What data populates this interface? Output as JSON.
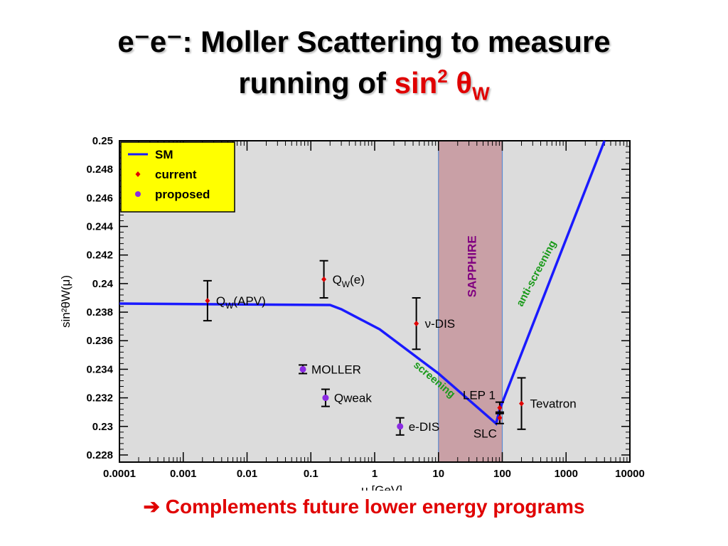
{
  "slide": {
    "title_line1": "e⁻e⁻:  Moller Scattering to measure",
    "title_line2_prefix": "running of ",
    "title_line2_sin": "sin",
    "title_line2_exp": "2",
    "title_line2_theta": " θ",
    "title_line2_sub": "W",
    "footer_arrow": "➔",
    "footer_text": " Complements future lower energy programs"
  },
  "colors": {
    "plot_background": "#dcdcdc",
    "sm_line": "#1a1aff",
    "current_point": "#e00000",
    "proposed_point": "#8a2be2",
    "legend_background": "#ffff00",
    "sapphire_band": "#c9a0a6",
    "annotation_green": "#1a9a1a",
    "sapphire_text": "#800080",
    "title_red": "#e00000"
  },
  "chart_data": {
    "type": "scatter",
    "xscale": "log",
    "xlim": [
      0.0001,
      10000
    ],
    "ylim": [
      0.2275,
      0.25
    ],
    "xlabel": "μ [GeV]",
    "ylabel": "sin²θW(μ)",
    "xtick_labels": [
      "0.0001",
      "0.001",
      "0.01",
      "0.1",
      "1",
      "10",
      "100",
      "1000",
      "10000"
    ],
    "xtick_values": [
      0.0001,
      0.001,
      0.01,
      0.1,
      1,
      10,
      100,
      1000,
      10000
    ],
    "ytick_labels": [
      "0.228",
      "0.23",
      "0.232",
      "0.234",
      "0.236",
      "0.238",
      "0.24",
      "0.242",
      "0.244",
      "0.246",
      "0.248",
      "0.25"
    ],
    "ytick_values": [
      0.228,
      0.23,
      0.232,
      0.234,
      0.236,
      0.238,
      0.24,
      0.242,
      0.244,
      0.246,
      0.248,
      0.25
    ],
    "grid": false,
    "legend": {
      "position": "top-left",
      "entries": [
        {
          "label": "SM",
          "marker": "line"
        },
        {
          "label": "current",
          "marker": "current"
        },
        {
          "label": "proposed",
          "marker": "proposed"
        }
      ]
    },
    "sm_curve": {
      "name": "SM",
      "x": [
        0.0001,
        0.2,
        0.3,
        1.2,
        10,
        80,
        91.2,
        4000
      ],
      "y": [
        0.2386,
        0.2385,
        0.2382,
        0.2368,
        0.2337,
        0.2302,
        0.2312,
        0.25
      ]
    },
    "points": [
      {
        "label": "QW(APV)",
        "label_main": "Q",
        "label_sub": "W",
        "label_rest": "(APV)",
        "kind": "current",
        "x": 0.0024,
        "y": 0.2388,
        "err": 0.0014,
        "label_side": "right"
      },
      {
        "label": "QW(e)",
        "label_main": "Q",
        "label_sub": "W",
        "label_rest": "(e)",
        "kind": "current",
        "x": 0.16,
        "y": 0.2403,
        "err": 0.0013,
        "label_side": "right"
      },
      {
        "label": "ν-DIS",
        "label_main": "ν-DIS",
        "label_sub": "",
        "label_rest": "",
        "kind": "current",
        "x": 4.5,
        "y": 0.2372,
        "err": 0.0018,
        "label_side": "right"
      },
      {
        "label": "MOLLER",
        "label_main": "MOLLER",
        "label_sub": "",
        "label_rest": "",
        "kind": "proposed",
        "x": 0.075,
        "y": 0.234,
        "err": 0.0003,
        "label_side": "right"
      },
      {
        "label": "Qweak",
        "label_main": "Qweak",
        "label_sub": "",
        "label_rest": "",
        "kind": "proposed",
        "x": 0.17,
        "y": 0.232,
        "err": 0.0006,
        "label_side": "right"
      },
      {
        "label": "e-DIS",
        "label_main": "e-DIS",
        "label_sub": "",
        "label_rest": "",
        "kind": "proposed",
        "x": 2.5,
        "y": 0.23,
        "err": 0.0006,
        "label_side": "right"
      },
      {
        "label": "LEP 1",
        "label_main": "LEP 1",
        "label_sub": "",
        "label_rest": "",
        "kind": "current",
        "x": 91.2,
        "y": 0.2313,
        "err": 0.0004,
        "label_side": "above-left"
      },
      {
        "label": "SLC",
        "label_main": "SLC",
        "label_sub": "",
        "label_rest": "",
        "kind": "current",
        "x": 91.2,
        "y": 0.2306,
        "err": 0.0004,
        "label_side": "below-left"
      },
      {
        "label": "Tevatron",
        "label_main": "Tevatron",
        "label_sub": "",
        "label_rest": "",
        "kind": "current",
        "x": 200,
        "y": 0.2316,
        "err": 0.0018,
        "label_side": "right"
      }
    ],
    "band": {
      "label": "SAPPHIRE",
      "x_min": 10,
      "x_max": 100
    },
    "annotations": [
      {
        "text": "screening",
        "x": 8,
        "y": 0.2331,
        "angle_deg": 40
      },
      {
        "text": "anti-screening",
        "x": 380,
        "y": 0.2406,
        "angle_deg": -62
      }
    ]
  }
}
